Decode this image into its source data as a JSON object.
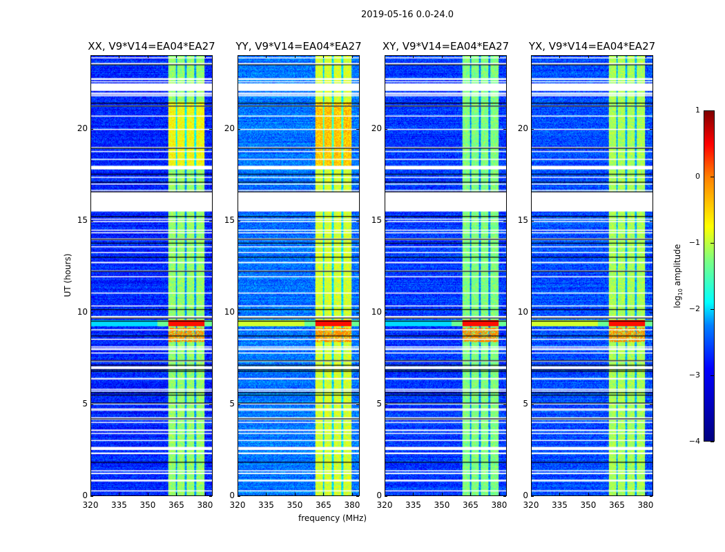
{
  "chart_data": {
    "type": "heatmap",
    "suptitle": "2019-05-16 0.0-24.0",
    "xlabel": "frequency (MHz)",
    "ylabel": "UT (hours)",
    "xlim": [
      320,
      384
    ],
    "ylim": [
      0,
      24
    ],
    "xticks": [
      "320",
      "335",
      "350",
      "365",
      "380"
    ],
    "xtick_values": [
      320,
      335,
      350,
      365,
      380
    ],
    "yticks": [
      "0",
      "5",
      "10",
      "15",
      "20"
    ],
    "ytick_values": [
      0,
      5,
      10,
      15,
      20
    ],
    "colormap": "jet",
    "colorbar": {
      "label": "log10 amplitude",
      "label_main": "log",
      "label_sub": "10",
      "label_rest": " amplitude",
      "range": [
        -4,
        1
      ],
      "ticks": [
        "1",
        "0",
        "−1",
        "−2",
        "−3",
        "−4"
      ],
      "tick_values": [
        1,
        0,
        -1,
        -2,
        -3,
        -4
      ]
    },
    "panels": [
      {
        "title": "XX, V9*V14=EA04*EA27",
        "background_level": -3.2,
        "band_level": -1.4
      },
      {
        "title": "YY, V9*V14=EA04*EA27",
        "background_level": -2.8,
        "band_level": -1.1
      },
      {
        "title": "XY, V9*V14=EA04*EA27",
        "background_level": -3.1,
        "band_level": -1.5
      },
      {
        "title": "YX, V9*V14=EA04*EA27",
        "background_level": -3.0,
        "band_level": -1.3
      }
    ],
    "rfi_band_mhz": [
      360.5,
      380
    ],
    "rfi_gaps_mhz": [
      365,
      370,
      375
    ],
    "strong_event_hours": [
      9.25,
      9.6
    ],
    "strong_event_level": 0.3,
    "flagged_hours": [
      [
        15.5,
        16.6
      ],
      [
        22.1,
        22.5
      ],
      [
        17.8,
        18.0
      ],
      [
        2.5,
        2.65
      ],
      [
        6.9,
        7.05
      ],
      [
        9.65,
        9.8
      ]
    ]
  }
}
